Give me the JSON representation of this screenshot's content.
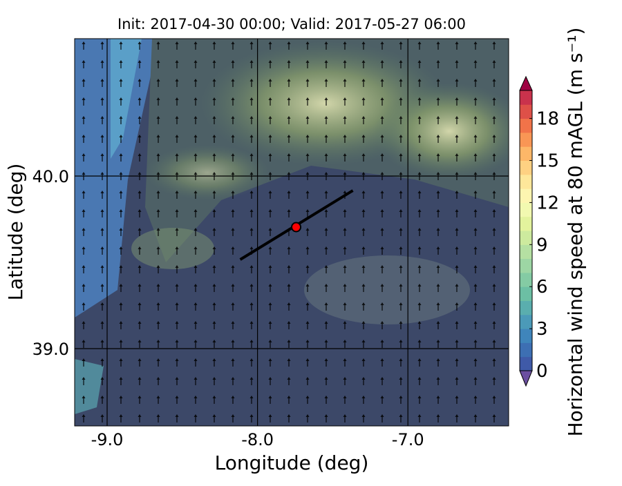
{
  "map": {
    "title": "Init: 2017-04-30 00:00; Valid: 2017-05-27 06:00",
    "xlabel": "Longitude (deg)",
    "ylabel": "Latitude (deg)",
    "xlim": [
      -9.216,
      -6.33
    ],
    "ylim": [
      38.552,
      40.796
    ],
    "xticks": [
      {
        "value": -9,
        "label": "-9.0"
      },
      {
        "value": -8,
        "label": "-8.0"
      },
      {
        "value": -7,
        "label": "-7.0"
      }
    ],
    "yticks": [
      {
        "value": 39,
        "label": "39.0"
      },
      {
        "value": 40,
        "label": "40.0"
      }
    ],
    "grid": true,
    "transect": {
      "start": [
        -8.115,
        39.516
      ],
      "end": [
        -7.366,
        39.916
      ],
      "color": "#000000"
    },
    "site": {
      "lon": -7.743,
      "lat": 39.704,
      "color": "#ff0000"
    },
    "colorbar": {
      "label": "Horizontal wind speed at 80 mAGL (m s⁻¹)",
      "lim": [
        0,
        20
      ],
      "ticks": [
        0,
        3,
        6,
        9,
        12,
        15,
        18
      ],
      "colors": [
        "#3f5aa8",
        "#3d6fb3",
        "#3f85bb",
        "#4b9ab8",
        "#5aaeae",
        "#6cbfa4",
        "#84cba4",
        "#9dd6a4",
        "#b5e0a2",
        "#cdea9e",
        "#e3f39d",
        "#f2f9b0",
        "#fdf5b0",
        "#fee79a",
        "#fed182",
        "#fdb768",
        "#f99655",
        "#f17349",
        "#de5048",
        "#c9324c"
      ],
      "under": "#6b4fa0",
      "over": "#9e0142"
    }
  }
}
